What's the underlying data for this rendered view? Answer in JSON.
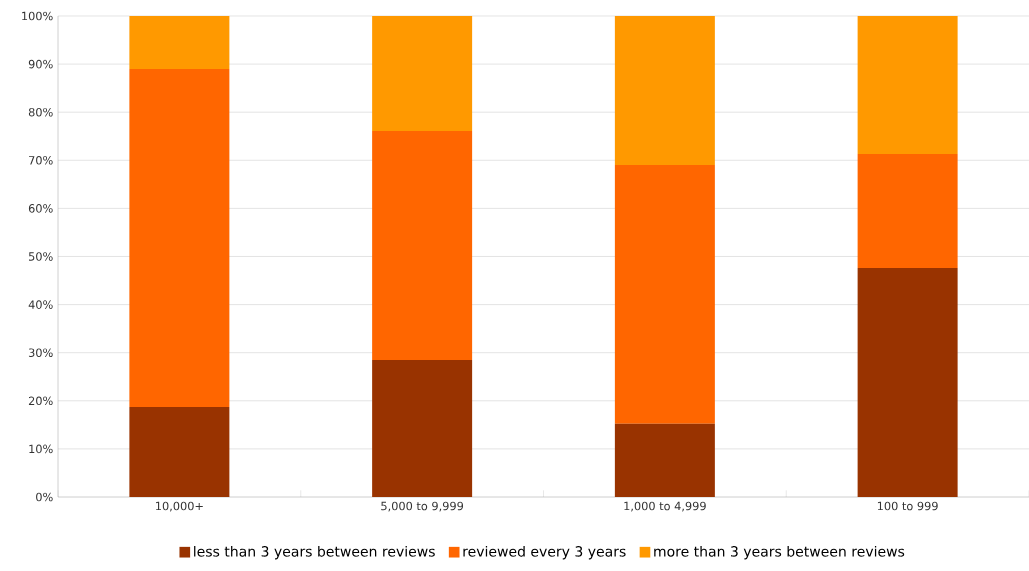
{
  "chart_data": {
    "type": "bar",
    "stacked": true,
    "categories": [
      "10,000+",
      "5,000 to 9,999",
      "1,000 to 4,999",
      "100 to 999"
    ],
    "series": [
      {
        "name": "less than 3 years between reviews",
        "color": "#993300",
        "values": [
          18.7,
          28.5,
          15.2,
          47.6
        ]
      },
      {
        "name": "reviewed every 3 years",
        "color": "#ff6600",
        "values": [
          70.3,
          47.6,
          53.8,
          23.7
        ]
      },
      {
        "name": "more than 3 years between reviews",
        "color": "#ff9900",
        "values": [
          11.0,
          23.9,
          31.0,
          28.7
        ]
      }
    ],
    "ylim": [
      0,
      100
    ],
    "yticks": [
      {
        "value": 0,
        "label": "0%"
      },
      {
        "value": 10,
        "label": "10%"
      },
      {
        "value": 20,
        "label": "20%"
      },
      {
        "value": 30,
        "label": "30%"
      },
      {
        "value": 40,
        "label": "40%"
      },
      {
        "value": 50,
        "label": "50%"
      },
      {
        "value": 60,
        "label": "60%"
      },
      {
        "value": 70,
        "label": "70%"
      },
      {
        "value": 80,
        "label": "80%"
      },
      {
        "value": 90,
        "label": "90%"
      },
      {
        "value": 100,
        "label": "100%"
      }
    ],
    "grid": "y",
    "legend": "bottom"
  }
}
